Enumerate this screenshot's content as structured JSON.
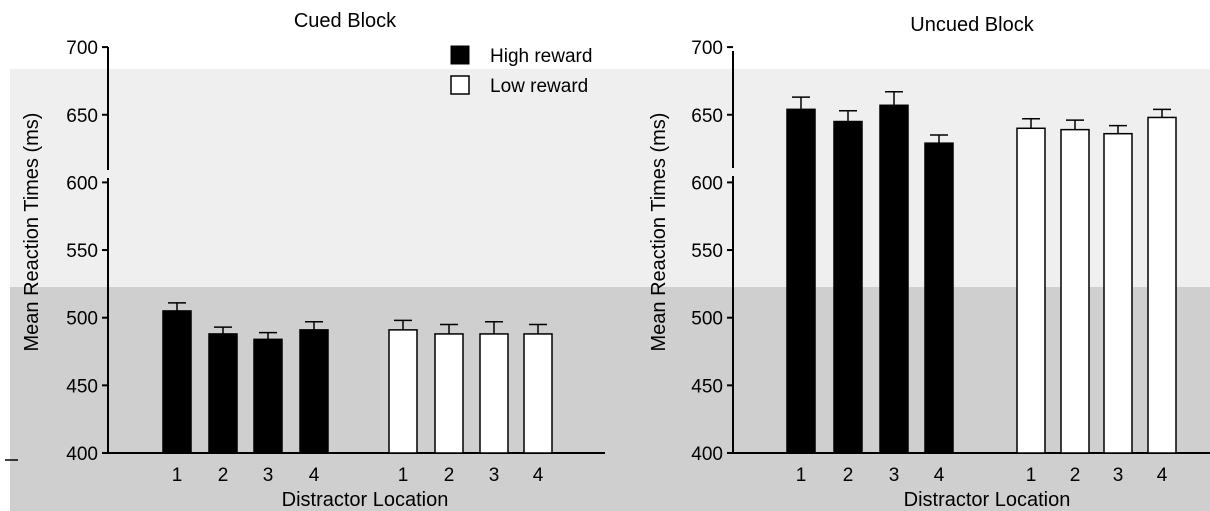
{
  "chart_data": [
    {
      "type": "bar",
      "title": "Cued Block",
      "xlabel": "Distractor Location",
      "ylabel": "Mean Reaction Times (ms)",
      "ylim": [
        400,
        700
      ],
      "yticks": [
        400,
        450,
        500,
        550,
        600,
        650,
        700
      ],
      "categories": [
        "1",
        "2",
        "3",
        "4"
      ],
      "series": [
        {
          "name": "High reward",
          "color": "#000000",
          "values": [
            505,
            488,
            484,
            491
          ],
          "error": [
            6,
            5,
            5,
            6
          ]
        },
        {
          "name": "Low reward",
          "color": "#ffffff",
          "values": [
            491,
            488,
            488,
            488
          ],
          "error": [
            7,
            7,
            9,
            7
          ]
        }
      ],
      "legend": "top-right",
      "axis_break": true
    },
    {
      "type": "bar",
      "title": "Uncued Block",
      "xlabel": "Distractor Location",
      "ylabel": "Mean Reaction Times (ms)",
      "ylim": [
        400,
        700
      ],
      "yticks": [
        400,
        450,
        500,
        550,
        600,
        650,
        700
      ],
      "categories": [
        "1",
        "2",
        "3",
        "4"
      ],
      "series": [
        {
          "name": "High reward",
          "color": "#000000",
          "values": [
            654,
            645,
            657,
            629
          ],
          "error": [
            9,
            8,
            10,
            6
          ]
        },
        {
          "name": "Low reward",
          "color": "#ffffff",
          "values": [
            640,
            639,
            636,
            648
          ],
          "error": [
            7,
            7,
            6,
            6
          ]
        }
      ],
      "axis_break": true
    }
  ]
}
